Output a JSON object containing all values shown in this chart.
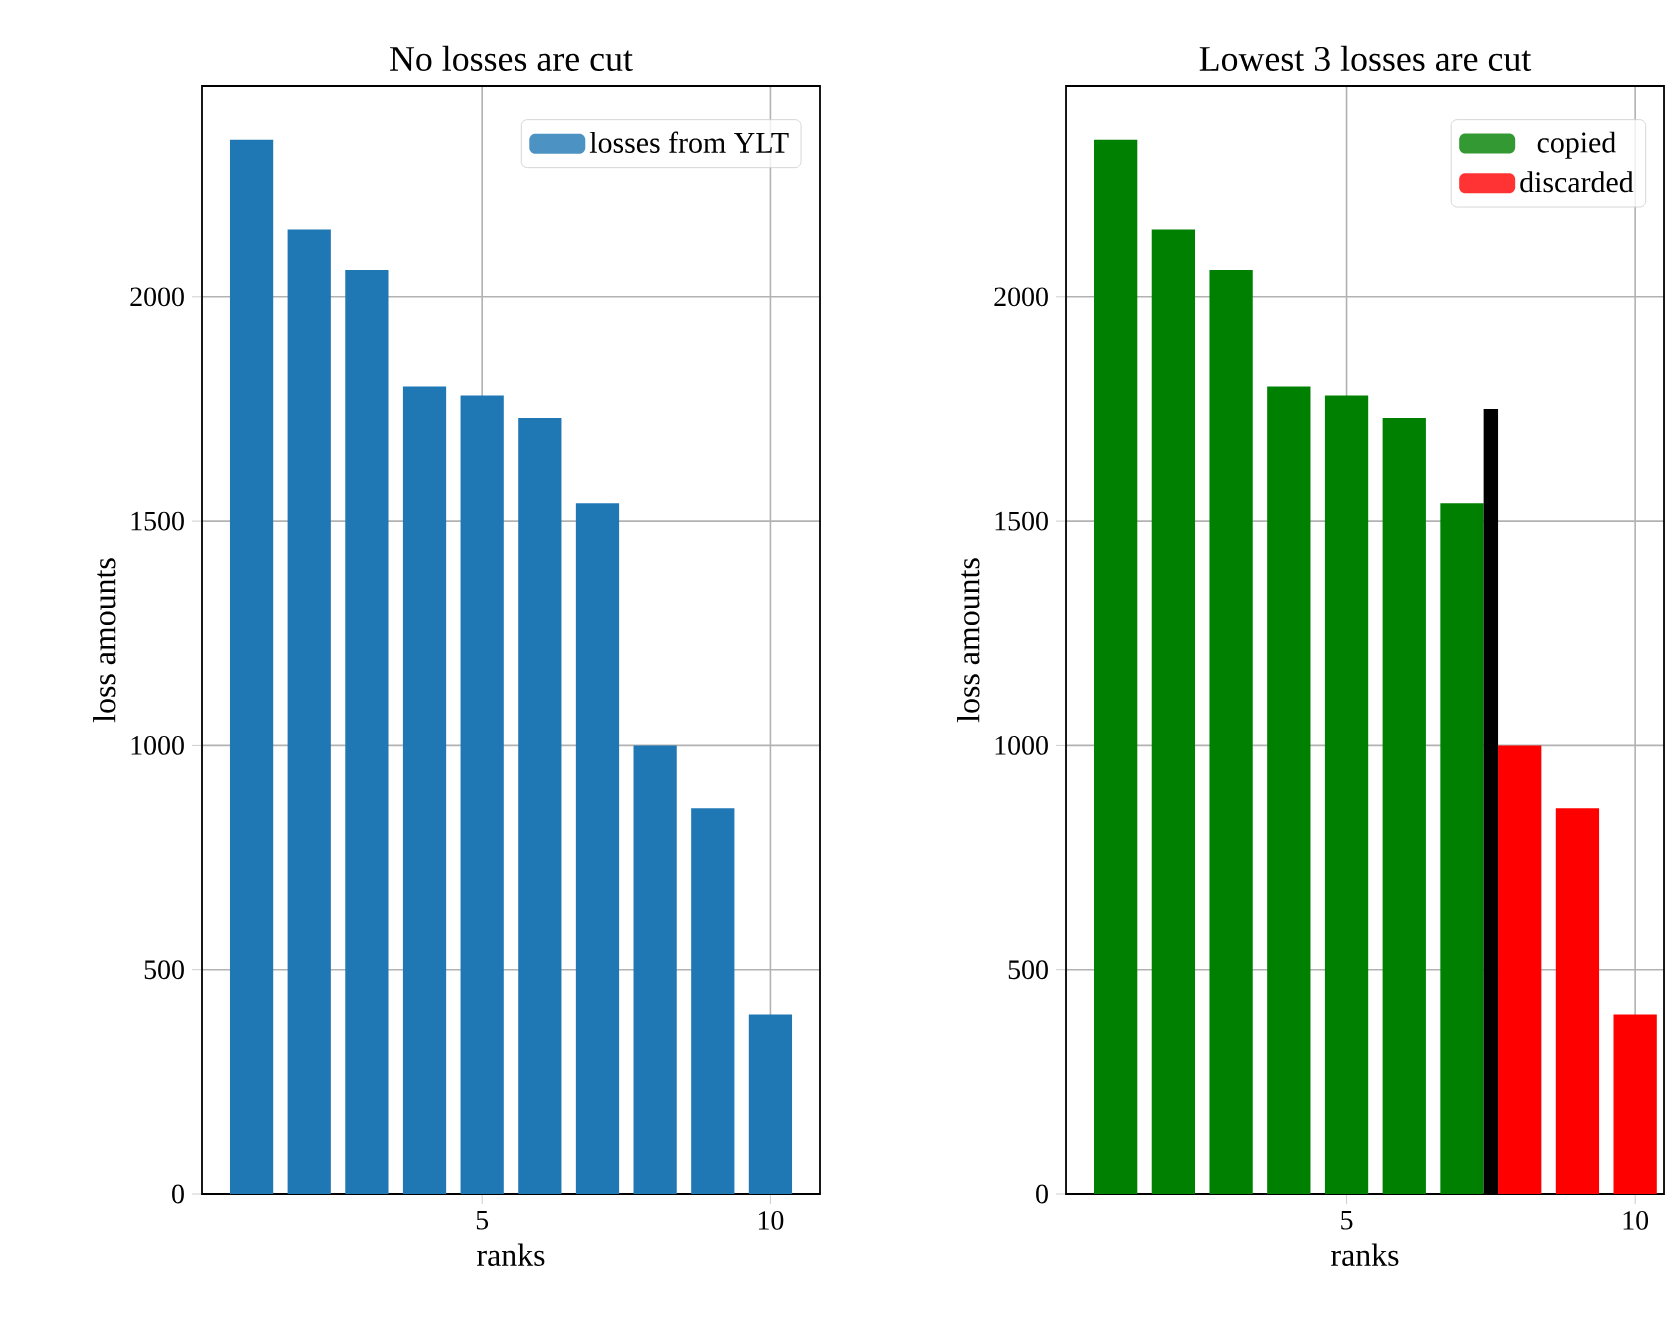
{
  "chart_data": [
    {
      "type": "bar",
      "title": "No losses are cut",
      "xlabel": "ranks",
      "ylabel": "loss amounts",
      "x": [
        1,
        2,
        3,
        4,
        5,
        6,
        7,
        8,
        9,
        10
      ],
      "series": [
        {
          "name": "losses from YLT",
          "color": "#1f77b4",
          "values": [
            2350,
            2150,
            2060,
            1800,
            1780,
            1730,
            1540,
            1000,
            860,
            400
          ]
        }
      ],
      "xlim": [
        0.14,
        10.86
      ],
      "xticks": [
        5,
        10
      ],
      "ylim": [
        0,
        2470
      ],
      "yticks": [
        0,
        500,
        1000,
        1500,
        2000
      ],
      "grid": true,
      "legend": "top right"
    },
    {
      "type": "bar",
      "title": "Lowest 3 losses are cut",
      "xlabel": "ranks",
      "ylabel": "loss amounts",
      "series": [
        {
          "name": "copied",
          "color": "#008000",
          "x": [
            1,
            2,
            3,
            4,
            5,
            6,
            7
          ],
          "values": [
            2350,
            2150,
            2060,
            1800,
            1780,
            1730,
            1540
          ]
        },
        {
          "name": "discarded",
          "color": "#ff0000",
          "x": [
            8,
            9,
            10
          ],
          "values": [
            1000,
            860,
            400
          ]
        },
        {
          "color": "#000000",
          "x": [
            7.5
          ],
          "values": [
            1750
          ]
        }
      ],
      "xlim": [
        0.14,
        10.5
      ],
      "xticks": [
        5,
        10
      ],
      "ylim": [
        0,
        2470
      ],
      "yticks": [
        0,
        500,
        1000,
        1500,
        2000
      ],
      "grid": true,
      "legend": "top right"
    }
  ]
}
